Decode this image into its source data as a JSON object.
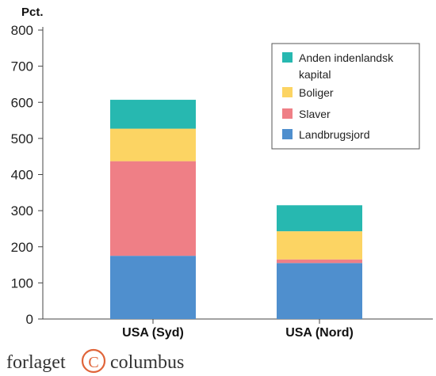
{
  "chart_data": {
    "type": "bar",
    "stacked": true,
    "ylabel": "Pct.",
    "ylim": [
      0,
      800
    ],
    "yticks": [
      0,
      100,
      200,
      300,
      400,
      500,
      600,
      700,
      800
    ],
    "categories": [
      "USA (Syd)",
      "USA (Nord)"
    ],
    "series": [
      {
        "name": "Landbrugsjord",
        "values": [
          175,
          155
        ],
        "color": "#4f8fce"
      },
      {
        "name": "Slaver",
        "values": [
          262,
          10
        ],
        "color": "#ef7f86"
      },
      {
        "name": "Boliger",
        "values": [
          90,
          78
        ],
        "color": "#fcd463"
      },
      {
        "name": "Anden indenlandsk kapital",
        "values": [
          80,
          72
        ],
        "color": "#27b8b0"
      }
    ],
    "legend": {
      "position": "top-right",
      "entries": [
        {
          "lines": [
            "Anden indenlandsk",
            "kapital"
          ],
          "color": "#27b8b0"
        },
        {
          "lines": [
            "Boliger"
          ],
          "color": "#fcd463"
        },
        {
          "lines": [
            "Slaver"
          ],
          "color": "#ef7f86"
        },
        {
          "lines": [
            "Landbrugsjord"
          ],
          "color": "#4f8fce"
        }
      ]
    },
    "grid": false
  },
  "logo": {
    "left": "forlaget",
    "right": "columbus",
    "mark": "C"
  }
}
